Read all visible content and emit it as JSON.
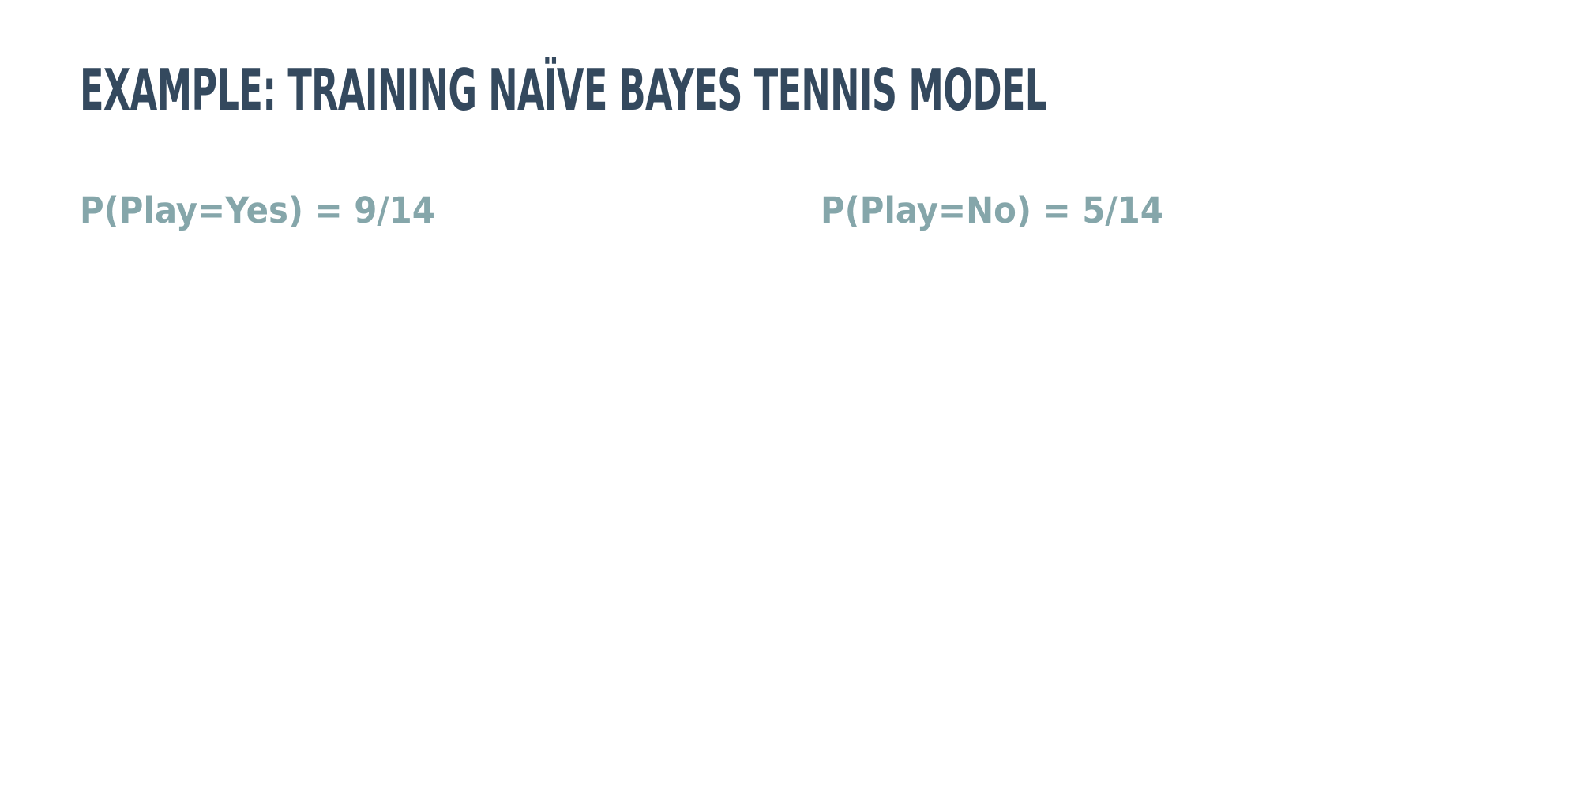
{
  "slide": {
    "title": "Example: Training Naïve Bayes Tennis Model",
    "priors": {
      "yes": "P(Play=Yes) = 9/14",
      "no": "P(Play=No) = 5/14"
    }
  },
  "colors": {
    "title": "#34495e",
    "text": "#85a6aa",
    "background": "#ffffff"
  }
}
